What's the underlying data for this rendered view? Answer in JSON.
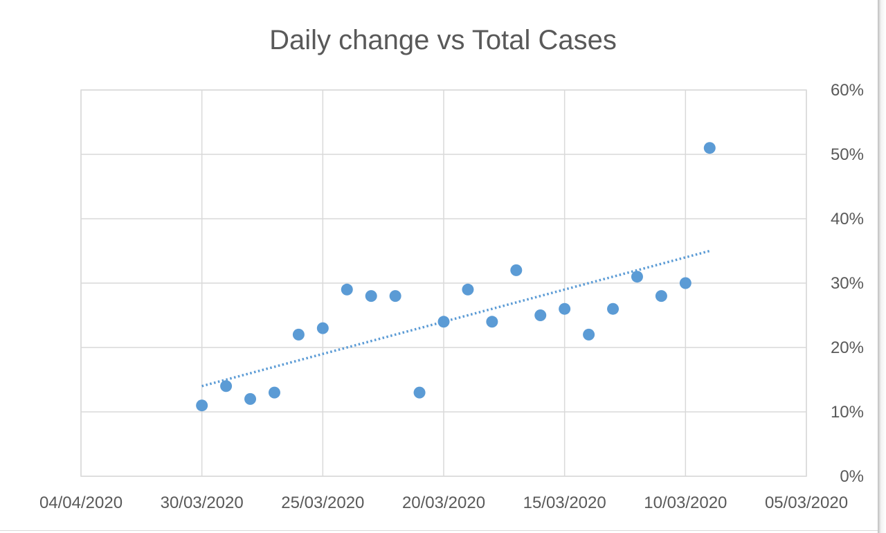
{
  "chart_data": {
    "type": "scatter",
    "title": "Daily change vs Total Cases",
    "x_axis": {
      "type": "date",
      "reversed": true,
      "min": "2020-03-05",
      "max": "2020-04-04",
      "tick_labels": [
        "04/04/2020",
        "30/03/2020",
        "25/03/2020",
        "20/03/2020",
        "15/03/2020",
        "10/03/2020",
        "05/03/2020"
      ],
      "tick_values": [
        "2020-04-04",
        "2020-03-30",
        "2020-03-25",
        "2020-03-20",
        "2020-03-15",
        "2020-03-10",
        "2020-03-05"
      ]
    },
    "y_axis": {
      "position": "right",
      "format": "percent",
      "min": 0,
      "max": 0.6,
      "tick_labels": [
        "0%",
        "10%",
        "20%",
        "30%",
        "40%",
        "50%",
        "60%"
      ],
      "tick_values": [
        0,
        0.1,
        0.2,
        0.3,
        0.4,
        0.5,
        0.6
      ]
    },
    "grid": true,
    "legend": "none",
    "series": [
      {
        "color": "#5b9bd5",
        "points": [
          {
            "x": "2020-03-09",
            "y": 0.51
          },
          {
            "x": "2020-03-10",
            "y": 0.3
          },
          {
            "x": "2020-03-11",
            "y": 0.28
          },
          {
            "x": "2020-03-12",
            "y": 0.31
          },
          {
            "x": "2020-03-13",
            "y": 0.26
          },
          {
            "x": "2020-03-14",
            "y": 0.22
          },
          {
            "x": "2020-03-15",
            "y": 0.26
          },
          {
            "x": "2020-03-16",
            "y": 0.25
          },
          {
            "x": "2020-03-17",
            "y": 0.32
          },
          {
            "x": "2020-03-18",
            "y": 0.24
          },
          {
            "x": "2020-03-19",
            "y": 0.29
          },
          {
            "x": "2020-03-20",
            "y": 0.24
          },
          {
            "x": "2020-03-21",
            "y": 0.13
          },
          {
            "x": "2020-03-22",
            "y": 0.28
          },
          {
            "x": "2020-03-23",
            "y": 0.28
          },
          {
            "x": "2020-03-24",
            "y": 0.29
          },
          {
            "x": "2020-03-25",
            "y": 0.23
          },
          {
            "x": "2020-03-26",
            "y": 0.22
          },
          {
            "x": "2020-03-27",
            "y": 0.13
          },
          {
            "x": "2020-03-28",
            "y": 0.12
          },
          {
            "x": "2020-03-29",
            "y": 0.14
          },
          {
            "x": "2020-03-30",
            "y": 0.11
          }
        ]
      }
    ],
    "trendline": {
      "type": "linear",
      "style": "dotted",
      "color": "#5b9bd5",
      "start": {
        "x": "2020-03-30",
        "y": 0.14
      },
      "end": {
        "x": "2020-03-09",
        "y": 0.35
      }
    }
  }
}
